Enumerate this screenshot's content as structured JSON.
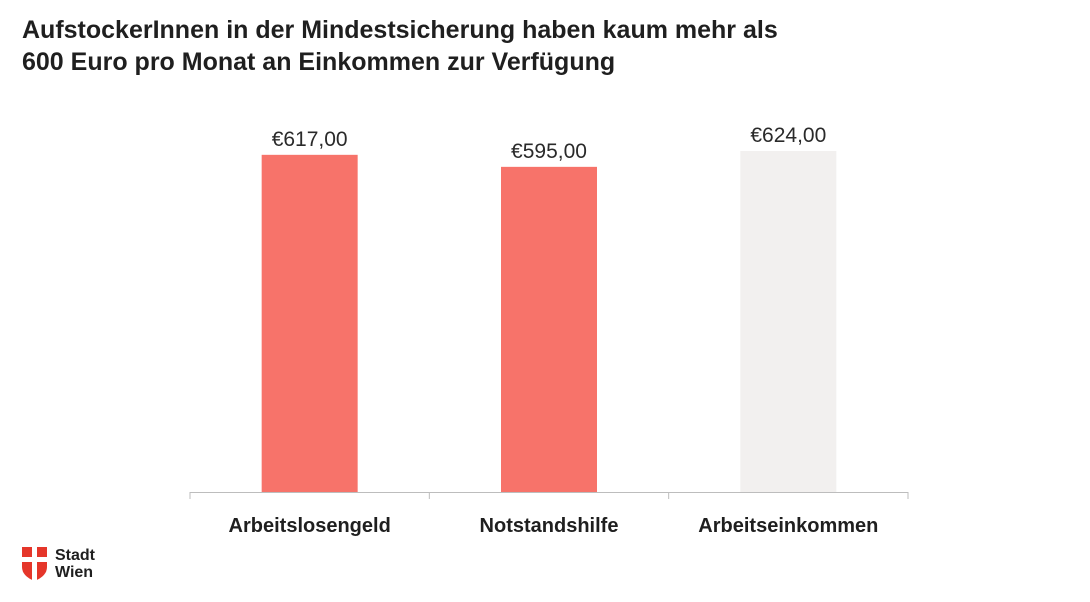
{
  "title": {
    "line1": "AufstockerInnen in der Mindestsicherung haben kaum mehr als",
    "line2": "600 Euro pro Monat an Einkommen zur Verfügung"
  },
  "chart_data": {
    "type": "bar",
    "categories": [
      "Arbeitslosengeld",
      "Notstandshilfe",
      "Arbeitseinkommen"
    ],
    "values": [
      617,
      595,
      624
    ],
    "value_labels": [
      "€617,00",
      "€595,00",
      "€624,00"
    ],
    "bar_colors": [
      "#f7736a",
      "#f7736a",
      "#f2f0ef"
    ],
    "title": "AufstockerInnen in der Mindestsicherung haben kaum mehr als 600 Euro pro Monat an Einkommen zur Verfügung",
    "xlabel": "",
    "ylabel": "",
    "ylim": [
      0,
      624
    ],
    "grid": false,
    "axis_color": "#bdbdbd"
  },
  "logo": {
    "line1": "Stadt",
    "line2": "Wien",
    "color": "#e5362a"
  }
}
